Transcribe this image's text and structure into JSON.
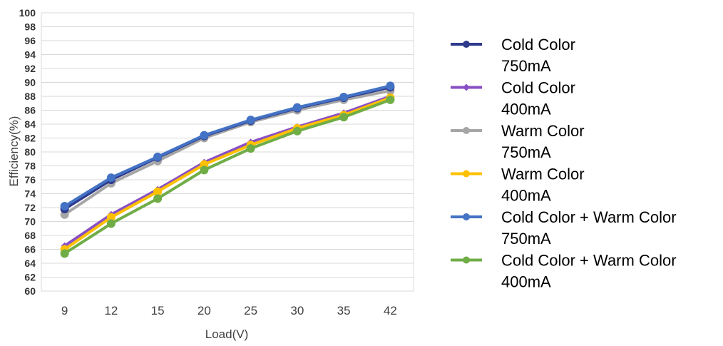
{
  "chart_data": {
    "type": "line",
    "title": "",
    "xlabel": "Load(V)",
    "ylabel": "Efficiency(%)",
    "categories": [
      "9",
      "12",
      "15",
      "20",
      "25",
      "30",
      "35",
      "42"
    ],
    "ylim": [
      60,
      100
    ],
    "yticks": [
      "60",
      "62",
      "64",
      "66",
      "68",
      "70",
      "72",
      "74",
      "76",
      "78",
      "80",
      "82",
      "84",
      "86",
      "88",
      "90",
      "92",
      "94",
      "96",
      "98",
      "100"
    ],
    "grid": true,
    "legend_position": "right",
    "series": [
      {
        "name": "Cold Color 750mA",
        "legend_lines": [
          "Cold Color",
          "750mA"
        ],
        "color": "#2e3a8c",
        "marker": "circle",
        "values": [
          71.8,
          76.0,
          79.2,
          82.3,
          84.5,
          86.3,
          87.8,
          89.3
        ]
      },
      {
        "name": "Cold Color 400mA",
        "legend_lines": [
          "Cold Color",
          "400mA"
        ],
        "color": "#8a4fc4",
        "marker": "diamond",
        "values": [
          66.5,
          71.0,
          74.6,
          78.5,
          81.4,
          83.6,
          85.6,
          88.0
        ]
      },
      {
        "name": "Warm Color 750mA",
        "legend_lines": [
          "Warm Color",
          "750mA"
        ],
        "color": "#a6a6a6",
        "marker": "circle",
        "values": [
          71.0,
          75.5,
          78.7,
          82.0,
          84.3,
          86.0,
          87.5,
          88.8
        ]
      },
      {
        "name": "Warm Color 400mA",
        "legend_lines": [
          "Warm Color",
          "400mA"
        ],
        "color": "#ffc000",
        "marker": "circle",
        "values": [
          66.0,
          70.6,
          74.3,
          78.2,
          81.0,
          83.4,
          85.3,
          87.8
        ]
      },
      {
        "name": "Cold Color + Warm Color 750mA",
        "legend_lines": [
          "Cold Color + Warm Color",
          "750mA"
        ],
        "color": "#4472c4",
        "marker": "circle",
        "values": [
          72.2,
          76.3,
          79.3,
          82.4,
          84.6,
          86.4,
          87.9,
          89.5
        ]
      },
      {
        "name": "Cold Color + Warm Color 400mA",
        "legend_lines": [
          "Cold Color + Warm Color",
          "400mA"
        ],
        "color": "#70ad47",
        "marker": "circle",
        "values": [
          65.4,
          69.7,
          73.3,
          77.4,
          80.5,
          83.0,
          85.0,
          87.5
        ]
      }
    ]
  }
}
